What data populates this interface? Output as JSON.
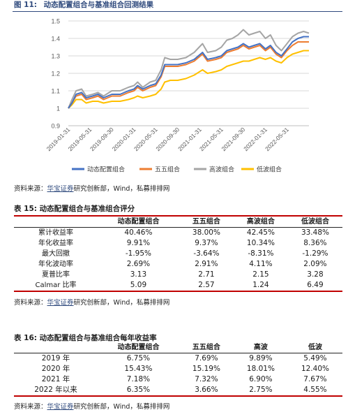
{
  "figure": {
    "label": "图 11:",
    "title": "动态配置组合与基准组合回测结果"
  },
  "chart_data": {
    "type": "line",
    "ylim": [
      0.9,
      1.5
    ],
    "yticks": [
      "0.9",
      "1",
      "1.1",
      "1.2",
      "1.3",
      "1.4",
      "1.5"
    ],
    "xlim": [
      "2019-01-31",
      "2022-09-30"
    ],
    "xticks": [
      "2019-01-31",
      "2019-05-31",
      "2019-09-30",
      "2020-01-31",
      "2020-05-31",
      "2020-09-30",
      "2021-01-31",
      "2021-05-31",
      "2021-09-30",
      "2022-01-31",
      "2022-05-31"
    ],
    "legend_position": "bottom",
    "grid": "horizontal",
    "series": [
      {
        "name": "动态配置组合",
        "color": "#4472c4",
        "points": [
          [
            "2019-01-31",
            1.0
          ],
          [
            "2019-02-20",
            1.03
          ],
          [
            "2019-03-15",
            1.08
          ],
          [
            "2019-04-15",
            1.09
          ],
          [
            "2019-05-10",
            1.06
          ],
          [
            "2019-06-15",
            1.07
          ],
          [
            "2019-07-15",
            1.08
          ],
          [
            "2019-08-15",
            1.06
          ],
          [
            "2019-09-30",
            1.08
          ],
          [
            "2019-11-15",
            1.08
          ],
          [
            "2019-12-31",
            1.1
          ],
          [
            "2020-01-31",
            1.11
          ],
          [
            "2020-02-20",
            1.13
          ],
          [
            "2020-03-20",
            1.11
          ],
          [
            "2020-04-30",
            1.13
          ],
          [
            "2020-05-31",
            1.14
          ],
          [
            "2020-06-30",
            1.19
          ],
          [
            "2020-07-20",
            1.25
          ],
          [
            "2020-08-20",
            1.25
          ],
          [
            "2020-09-30",
            1.25
          ],
          [
            "2020-11-15",
            1.26
          ],
          [
            "2020-12-31",
            1.28
          ],
          [
            "2021-02-15",
            1.32
          ],
          [
            "2021-03-15",
            1.28
          ],
          [
            "2021-04-30",
            1.29
          ],
          [
            "2021-05-31",
            1.3
          ],
          [
            "2021-06-30",
            1.33
          ],
          [
            "2021-07-31",
            1.34
          ],
          [
            "2021-08-31",
            1.35
          ],
          [
            "2021-09-30",
            1.37
          ],
          [
            "2021-10-31",
            1.35
          ],
          [
            "2021-11-30",
            1.36
          ],
          [
            "2021-12-31",
            1.37
          ],
          [
            "2022-01-31",
            1.34
          ],
          [
            "2022-02-28",
            1.36
          ],
          [
            "2022-03-31",
            1.32
          ],
          [
            "2022-04-30",
            1.3
          ],
          [
            "2022-05-31",
            1.34
          ],
          [
            "2022-06-30",
            1.38
          ],
          [
            "2022-07-31",
            1.4
          ],
          [
            "2022-08-31",
            1.41
          ],
          [
            "2022-09-30",
            1.41
          ]
        ]
      },
      {
        "name": "五五组合",
        "color": "#ed7d31",
        "points": [
          [
            "2019-01-31",
            1.0
          ],
          [
            "2019-02-20",
            1.03
          ],
          [
            "2019-03-15",
            1.07
          ],
          [
            "2019-04-15",
            1.08
          ],
          [
            "2019-05-10",
            1.05
          ],
          [
            "2019-06-15",
            1.06
          ],
          [
            "2019-07-15",
            1.07
          ],
          [
            "2019-08-15",
            1.05
          ],
          [
            "2019-09-30",
            1.07
          ],
          [
            "2019-11-15",
            1.07
          ],
          [
            "2019-12-31",
            1.09
          ],
          [
            "2020-01-31",
            1.1
          ],
          [
            "2020-02-20",
            1.12
          ],
          [
            "2020-03-20",
            1.1
          ],
          [
            "2020-04-30",
            1.12
          ],
          [
            "2020-05-31",
            1.13
          ],
          [
            "2020-06-30",
            1.18
          ],
          [
            "2020-07-20",
            1.24
          ],
          [
            "2020-08-20",
            1.24
          ],
          [
            "2020-09-30",
            1.24
          ],
          [
            "2020-11-15",
            1.25
          ],
          [
            "2020-12-31",
            1.27
          ],
          [
            "2021-02-15",
            1.31
          ],
          [
            "2021-03-15",
            1.27
          ],
          [
            "2021-04-30",
            1.28
          ],
          [
            "2021-05-31",
            1.29
          ],
          [
            "2021-06-30",
            1.32
          ],
          [
            "2021-07-31",
            1.33
          ],
          [
            "2021-08-31",
            1.34
          ],
          [
            "2021-09-30",
            1.36
          ],
          [
            "2021-10-31",
            1.34
          ],
          [
            "2021-11-30",
            1.35
          ],
          [
            "2021-12-31",
            1.36
          ],
          [
            "2022-01-31",
            1.33
          ],
          [
            "2022-02-28",
            1.35
          ],
          [
            "2022-03-31",
            1.31
          ],
          [
            "2022-04-30",
            1.29
          ],
          [
            "2022-05-31",
            1.33
          ],
          [
            "2022-06-30",
            1.36
          ],
          [
            "2022-07-31",
            1.38
          ],
          [
            "2022-08-31",
            1.38
          ],
          [
            "2022-09-30",
            1.38
          ]
        ]
      },
      {
        "name": "高波组合",
        "color": "#a5a5a5",
        "points": [
          [
            "2019-01-31",
            1.0
          ],
          [
            "2019-02-20",
            1.05
          ],
          [
            "2019-03-15",
            1.1
          ],
          [
            "2019-04-15",
            1.11
          ],
          [
            "2019-05-10",
            1.07
          ],
          [
            "2019-06-15",
            1.08
          ],
          [
            "2019-07-15",
            1.09
          ],
          [
            "2019-08-15",
            1.07
          ],
          [
            "2019-09-30",
            1.1
          ],
          [
            "2019-11-15",
            1.1
          ],
          [
            "2019-12-31",
            1.12
          ],
          [
            "2020-01-31",
            1.13
          ],
          [
            "2020-02-20",
            1.15
          ],
          [
            "2020-03-20",
            1.12
          ],
          [
            "2020-04-30",
            1.15
          ],
          [
            "2020-05-31",
            1.16
          ],
          [
            "2020-06-30",
            1.22
          ],
          [
            "2020-07-20",
            1.29
          ],
          [
            "2020-08-20",
            1.28
          ],
          [
            "2020-09-30",
            1.28
          ],
          [
            "2020-11-15",
            1.29
          ],
          [
            "2020-12-31",
            1.32
          ],
          [
            "2021-02-15",
            1.37
          ],
          [
            "2021-03-15",
            1.32
          ],
          [
            "2021-04-30",
            1.33
          ],
          [
            "2021-05-31",
            1.35
          ],
          [
            "2021-06-30",
            1.39
          ],
          [
            "2021-07-31",
            1.4
          ],
          [
            "2021-08-31",
            1.42
          ],
          [
            "2021-09-30",
            1.45
          ],
          [
            "2021-10-31",
            1.42
          ],
          [
            "2021-11-30",
            1.43
          ],
          [
            "2021-12-31",
            1.44
          ],
          [
            "2022-01-31",
            1.4
          ],
          [
            "2022-02-28",
            1.42
          ],
          [
            "2022-03-31",
            1.36
          ],
          [
            "2022-04-30",
            1.33
          ],
          [
            "2022-05-31",
            1.37
          ],
          [
            "2022-06-30",
            1.41
          ],
          [
            "2022-07-31",
            1.43
          ],
          [
            "2022-08-31",
            1.44
          ],
          [
            "2022-09-30",
            1.43
          ]
        ]
      },
      {
        "name": "低波组合",
        "color": "#ffc000",
        "points": [
          [
            "2019-01-31",
            1.0
          ],
          [
            "2019-02-20",
            1.02
          ],
          [
            "2019-03-15",
            1.05
          ],
          [
            "2019-04-15",
            1.05
          ],
          [
            "2019-05-10",
            1.03
          ],
          [
            "2019-06-15",
            1.04
          ],
          [
            "2019-07-15",
            1.04
          ],
          [
            "2019-08-15",
            1.03
          ],
          [
            "2019-09-30",
            1.04
          ],
          [
            "2019-11-15",
            1.04
          ],
          [
            "2019-12-31",
            1.05
          ],
          [
            "2020-01-31",
            1.06
          ],
          [
            "2020-02-20",
            1.07
          ],
          [
            "2020-03-20",
            1.06
          ],
          [
            "2020-04-30",
            1.07
          ],
          [
            "2020-05-31",
            1.08
          ],
          [
            "2020-06-30",
            1.11
          ],
          [
            "2020-07-20",
            1.15
          ],
          [
            "2020-08-20",
            1.16
          ],
          [
            "2020-09-30",
            1.16
          ],
          [
            "2020-11-15",
            1.17
          ],
          [
            "2020-12-31",
            1.19
          ],
          [
            "2021-02-15",
            1.22
          ],
          [
            "2021-03-15",
            1.2
          ],
          [
            "2021-04-30",
            1.21
          ],
          [
            "2021-05-31",
            1.22
          ],
          [
            "2021-06-30",
            1.24
          ],
          [
            "2021-07-31",
            1.25
          ],
          [
            "2021-08-31",
            1.26
          ],
          [
            "2021-09-30",
            1.27
          ],
          [
            "2021-10-31",
            1.27
          ],
          [
            "2021-11-30",
            1.28
          ],
          [
            "2021-12-31",
            1.29
          ],
          [
            "2022-01-31",
            1.28
          ],
          [
            "2022-02-28",
            1.29
          ],
          [
            "2022-03-31",
            1.27
          ],
          [
            "2022-04-30",
            1.26
          ],
          [
            "2022-05-31",
            1.29
          ],
          [
            "2022-06-30",
            1.31
          ],
          [
            "2022-07-31",
            1.32
          ],
          [
            "2022-08-31",
            1.33
          ],
          [
            "2022-09-30",
            1.33
          ]
        ]
      }
    ]
  },
  "source1": {
    "prefix": "资料来源：",
    "link": "华宝证券",
    "rest": "研究创新部，Wind，私募排排网"
  },
  "table15": {
    "title": "表 15:  动态配置组合与基准组合评分",
    "headers": [
      "",
      "动态配置组合",
      "五五组合",
      "高波组合",
      "低波组合"
    ],
    "rows": [
      [
        "累计收益率",
        "40.46%",
        "38.00%",
        "42.45%",
        "33.48%"
      ],
      [
        "年化收益率",
        "9.91%",
        "9.37%",
        "10.34%",
        "8.36%"
      ],
      [
        "最大回撤",
        "-1.95%",
        "-3.64%",
        "-8.31%",
        "-1.29%"
      ],
      [
        "年化波动率",
        "2.69%",
        "2.91%",
        "4.11%",
        "2.09%"
      ],
      [
        "夏普比率",
        "3.13",
        "2.71",
        "2.15",
        "3.28"
      ],
      [
        "Calmar 比率",
        "5.09",
        "2.57",
        "1.24",
        "6.49"
      ]
    ]
  },
  "source2": {
    "prefix": "资料来源：",
    "link": "华宝证券",
    "rest": "研究创新部，Wind，私募排排网"
  },
  "table16": {
    "title": "表 16:  动态配置组合与基准组合每年收益率",
    "headers": [
      "",
      "动态配置组合",
      "五五组合",
      "高波",
      "低波"
    ],
    "rows": [
      [
        "2019 年",
        "6.75%",
        "7.69%",
        "9.89%",
        "5.49%"
      ],
      [
        "2020 年",
        "15.43%",
        "15.19%",
        "18.01%",
        "12.40%"
      ],
      [
        "2021 年",
        "7.18%",
        "7.32%",
        "6.90%",
        "7.67%"
      ],
      [
        "2022 年以来",
        "6.35%",
        "3.66%",
        "2.75%",
        "4.55%"
      ]
    ]
  },
  "source3": {
    "prefix": "资料来源：",
    "link": "华宝证券",
    "rest": "研究创新部，Wind，私募排排网"
  }
}
